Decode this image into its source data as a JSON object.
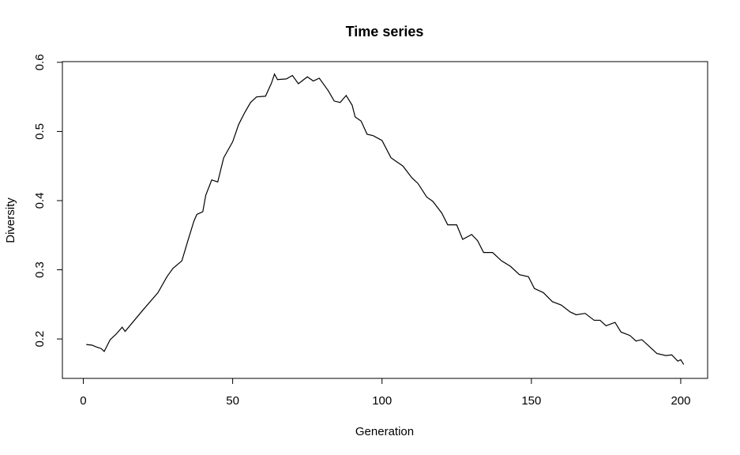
{
  "chart_data": {
    "type": "line",
    "title": "Time series",
    "x_label": "Generation",
    "y_label": "Diversity",
    "x": [
      1,
      3,
      4,
      6,
      7,
      9,
      11,
      13,
      14,
      20,
      25,
      28,
      30,
      33,
      35,
      37,
      38,
      40,
      41,
      43,
      45,
      47,
      50,
      52,
      54,
      56,
      58,
      61,
      63,
      64,
      65,
      68,
      70,
      72,
      75,
      77,
      79,
      82,
      84,
      86,
      88,
      90,
      91,
      93,
      95,
      97,
      100,
      103,
      105,
      107,
      110,
      112,
      115,
      117,
      120,
      122,
      125,
      127,
      130,
      132,
      134,
      137,
      140,
      143,
      146,
      149,
      151,
      154,
      157,
      160,
      163,
      165,
      168,
      171,
      173,
      175,
      178,
      180,
      183,
      185,
      187,
      190,
      192,
      195,
      197,
      199,
      200,
      201
    ],
    "series": [
      {
        "name": "Diversity",
        "color": "#000000",
        "values": [
          0.192,
          0.191,
          0.189,
          0.186,
          0.182,
          0.199,
          0.207,
          0.217,
          0.211,
          0.242,
          0.267,
          0.29,
          0.302,
          0.313,
          0.342,
          0.37,
          0.38,
          0.384,
          0.408,
          0.43,
          0.427,
          0.462,
          0.485,
          0.51,
          0.527,
          0.542,
          0.55,
          0.551,
          0.57,
          0.583,
          0.575,
          0.576,
          0.581,
          0.569,
          0.579,
          0.573,
          0.577,
          0.559,
          0.544,
          0.542,
          0.552,
          0.538,
          0.521,
          0.515,
          0.496,
          0.494,
          0.487,
          0.462,
          0.456,
          0.45,
          0.433,
          0.425,
          0.405,
          0.399,
          0.382,
          0.365,
          0.365,
          0.344,
          0.351,
          0.342,
          0.325,
          0.325,
          0.313,
          0.305,
          0.293,
          0.29,
          0.273,
          0.267,
          0.254,
          0.249,
          0.239,
          0.235,
          0.237,
          0.227,
          0.227,
          0.219,
          0.224,
          0.21,
          0.205,
          0.197,
          0.199,
          0.187,
          0.179,
          0.176,
          0.177,
          0.168,
          0.17,
          0.163
        ]
      }
    ],
    "xlim": [
      -7,
      209
    ],
    "ylim": [
      0.143,
      0.601
    ],
    "xticks": [
      0,
      50,
      100,
      150,
      200
    ],
    "yticks": [
      0.2,
      0.3,
      0.4,
      0.5,
      0.6
    ]
  }
}
